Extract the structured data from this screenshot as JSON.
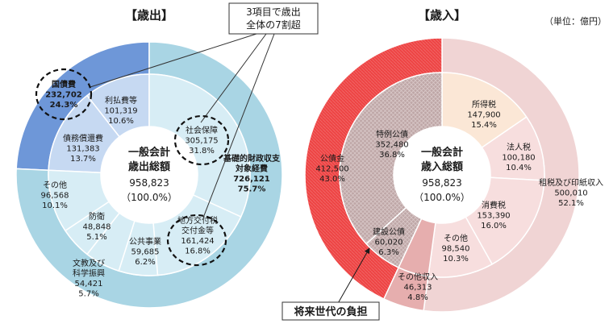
{
  "unit_note": "（単位：億円）",
  "callout_top": [
    "3項目で歳出",
    "全体の7割超"
  ],
  "callout_bottom": "将来世代の負担",
  "chart_data": [
    {
      "type": "pie",
      "title": "【歳出】",
      "center": [
        "一般会計",
        "歳出総額",
        "958,823",
        "（100.0%）"
      ],
      "outer_ring": [
        {
          "name": "国債費",
          "value": 232702,
          "pct": "24.3%",
          "color": "#6e97d8"
        },
        {
          "name": "基礎的財政収支対象経費",
          "value": 726121,
          "pct": "75.7%",
          "color": "#a9d5e4"
        }
      ],
      "inner_ring": [
        {
          "name": "利払費等",
          "value": 101319,
          "pct": "10.6%",
          "color": "#c6d9f2"
        },
        {
          "name": "債務償還費",
          "value": 131383,
          "pct": "13.7%",
          "color": "#c6d9f2"
        },
        {
          "name": "社会保障",
          "value": 305175,
          "pct": "31.8%",
          "color": "#d7edf5"
        },
        {
          "name": "地方交付税交付金等",
          "value": 161424,
          "pct": "16.8%",
          "color": "#d7edf5"
        },
        {
          "name": "公共事業",
          "value": 59685,
          "pct": "6.2%",
          "color": "#d7edf5"
        },
        {
          "name": "文教及び科学振興",
          "value": 54421,
          "pct": "5.7%",
          "color": "#d7edf5"
        },
        {
          "name": "防衛",
          "value": 48848,
          "pct": "5.1%",
          "color": "#d7edf5"
        },
        {
          "name": "その他",
          "value": 96568,
          "pct": "10.1%",
          "color": "#d7edf5"
        }
      ],
      "labels": [
        {
          "lines": [
            "国債費",
            "232,702",
            "24.3%"
          ],
          "bold": true
        },
        {
          "lines": [
            "利払費等",
            "101,319",
            "10.6%"
          ]
        },
        {
          "lines": [
            "債務償還費",
            "131,383",
            "13.7%"
          ]
        },
        {
          "lines": [
            "社会保障",
            "305,175",
            "31.8%"
          ]
        },
        {
          "lines": [
            "基礎的財政収支",
            "対象経費",
            "726,121",
            "75.7%"
          ],
          "bold": true
        },
        {
          "lines": [
            "地方交付税",
            "交付金等",
            "161,424",
            "16.8%"
          ]
        },
        {
          "lines": [
            "公共事業",
            "59,685",
            "6.2%"
          ]
        },
        {
          "lines": [
            "文教及び",
            "科学振興",
            "54,421",
            "5.7%"
          ]
        },
        {
          "lines": [
            "防衛",
            "48,848",
            "5.1%"
          ]
        },
        {
          "lines": [
            "その他",
            "96,568",
            "10.1%"
          ]
        }
      ]
    },
    {
      "type": "pie",
      "title": "【歳入】",
      "center": [
        "一般会計",
        "歳入総額",
        "958,823",
        "（100.0%）"
      ],
      "outer_ring": [
        {
          "name": "租税及び印紙収入",
          "value": 500010,
          "pct": "52.1%",
          "color": "#f0d4d4"
        },
        {
          "name": "その他収入",
          "value": 46313,
          "pct": "4.8%",
          "color": "#e6aeae"
        },
        {
          "name": "公債金",
          "value": 412500,
          "pct": "43.0%",
          "color": "#ee4c4c"
        }
      ],
      "inner_ring": [
        {
          "name": "所得税",
          "value": 147900,
          "pct": "15.4%",
          "color": "#fbe7d6"
        },
        {
          "name": "法人税",
          "value": 100180,
          "pct": "10.4%",
          "color": "#f7dede"
        },
        {
          "name": "消費税",
          "value": 153390,
          "pct": "16.0%",
          "color": "#f7dede"
        },
        {
          "name": "その他",
          "value": 98540,
          "pct": "10.3%",
          "color": "#f7dede"
        },
        {
          "name": "その他収入",
          "value": 46313,
          "pct": "4.8%",
          "color": "#e6aeae"
        },
        {
          "name": "建設公債",
          "value": 60020,
          "pct": "6.3%",
          "color": "#ceb6b6"
        },
        {
          "name": "特例公債",
          "value": 352480,
          "pct": "36.8%",
          "color": "#bfa8a8"
        }
      ],
      "labels": [
        {
          "lines": [
            "所得税",
            "147,900",
            "15.4%"
          ]
        },
        {
          "lines": [
            "法人税",
            "100,180",
            "10.4%"
          ]
        },
        {
          "lines": [
            "租税及び印紙収入",
            "500,010",
            "52.1%"
          ]
        },
        {
          "lines": [
            "消費税",
            "153,390",
            "16.0%"
          ]
        },
        {
          "lines": [
            "その他",
            "98,540",
            "10.3%"
          ]
        },
        {
          "lines": [
            "その他収入",
            "46,313",
            "4.8%"
          ]
        },
        {
          "lines": [
            "建設公債",
            "60,020",
            "6.3%"
          ]
        },
        {
          "lines": [
            "特例公債",
            "352,480",
            "36.8%"
          ]
        },
        {
          "lines": [
            "公債金",
            "412,500",
            "43.0%"
          ]
        }
      ]
    }
  ]
}
